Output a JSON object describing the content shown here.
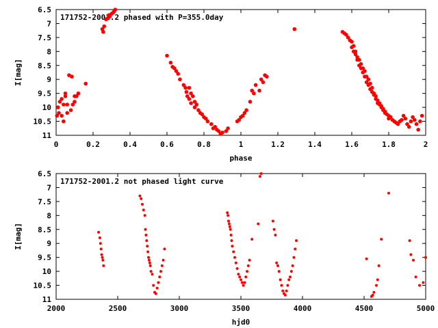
{
  "chart_data": [
    {
      "type": "scatter",
      "title": "171752-2001.2 phased with P=355.0day",
      "xlabel": "phase",
      "ylabel": "I[mag]",
      "xlim": [
        0,
        2
      ],
      "ylim": [
        11,
        6.5
      ],
      "y_inverted": true,
      "grid": false,
      "marker_color": "#ff0000",
      "xticks": [
        "0",
        "0.2",
        "0.4",
        "0.6",
        "0.8",
        "1",
        "1.2",
        "1.4",
        "1.6",
        "1.8",
        "2"
      ],
      "yticks": [
        "6.5",
        "7",
        "7.5",
        "8",
        "8.5",
        "9",
        "9.5",
        "10",
        "10.5",
        "11"
      ],
      "series": [
        {
          "x": [
            0.005,
            0.01,
            0.015,
            0.02,
            0.03,
            0.03,
            0.04,
            0.04,
            0.05,
            0.05,
            0.06,
            0.06,
            0.07,
            0.08,
            0.085,
            0.09,
            0.1,
            0.1,
            0.11,
            0.12,
            0.16,
            0.25,
            0.255,
            0.26,
            0.27,
            0.28,
            0.285,
            0.29,
            0.3,
            0.31,
            0.315,
            0.32,
            0.6,
            0.62,
            0.63,
            0.64,
            0.65,
            0.66,
            0.67,
            0.69,
            0.7,
            0.705,
            0.71,
            0.72,
            0.72,
            0.73,
            0.73,
            0.74,
            0.75,
            0.75,
            0.76,
            0.77,
            0.78,
            0.79,
            0.8,
            0.81,
            0.82,
            0.84,
            0.85,
            0.86,
            0.87,
            0.88,
            0.89,
            0.9,
            0.92,
            0.93,
            0.98,
            0.99,
            1.0,
            1.01,
            1.02,
            1.03,
            1.05,
            1.06,
            1.07,
            1.08,
            1.1,
            1.11,
            1.12,
            1.13,
            1.14,
            1.29,
            1.55,
            1.56,
            1.57,
            1.58,
            1.59,
            1.6,
            1.6,
            1.61,
            1.61,
            1.62,
            1.62,
            1.63,
            1.63,
            1.64,
            1.64,
            1.65,
            1.65,
            1.66,
            1.66,
            1.67,
            1.67,
            1.68,
            1.68,
            1.69,
            1.69,
            1.7,
            1.7,
            1.71,
            1.71,
            1.72,
            1.72,
            1.73,
            1.73,
            1.74,
            1.74,
            1.75,
            1.75,
            1.76,
            1.76,
            1.77,
            1.77,
            1.78,
            1.78,
            1.79,
            1.8,
            1.8,
            1.81,
            1.82,
            1.83,
            1.84,
            1.85,
            1.86,
            1.87,
            1.88,
            1.89,
            1.9,
            1.91,
            1.92,
            1.93,
            1.94,
            1.95,
            1.96,
            1.97,
            1.98
          ],
          "y": [
            10.3,
            10.0,
            10.2,
            9.8,
            10.3,
            9.7,
            9.9,
            10.5,
            9.6,
            9.5,
            10.2,
            9.9,
            8.85,
            10.1,
            8.9,
            9.9,
            9.6,
            9.8,
            9.6,
            9.5,
            9.15,
            7.2,
            7.3,
            7.1,
            6.85,
            6.8,
            6.7,
            6.75,
            6.65,
            6.6,
            6.55,
            6.5,
            8.15,
            8.4,
            8.55,
            8.6,
            8.7,
            8.8,
            9.0,
            9.2,
            9.3,
            9.45,
            9.6,
            9.7,
            9.3,
            9.5,
            9.85,
            9.6,
            9.8,
            10.0,
            9.9,
            10.1,
            10.2,
            10.25,
            10.35,
            10.4,
            10.5,
            10.6,
            10.75,
            10.7,
            10.8,
            10.85,
            10.95,
            10.9,
            10.85,
            10.75,
            10.5,
            10.45,
            10.35,
            10.3,
            10.2,
            10.1,
            9.8,
            9.4,
            9.5,
            9.2,
            9.4,
            9.0,
            9.1,
            8.85,
            8.9,
            7.2,
            7.3,
            7.35,
            7.4,
            7.5,
            7.6,
            7.65,
            7.85,
            7.8,
            8.0,
            8.1,
            8.0,
            8.2,
            8.3,
            8.3,
            8.5,
            8.45,
            8.6,
            8.6,
            8.75,
            8.7,
            8.9,
            8.9,
            9.1,
            9.0,
            9.2,
            9.15,
            9.35,
            9.3,
            9.45,
            9.5,
            9.55,
            9.7,
            9.6,
            9.85,
            9.75,
            9.9,
            9.85,
            10.0,
            9.95,
            10.1,
            10.05,
            10.2,
            10.15,
            10.25,
            10.3,
            10.4,
            10.35,
            10.45,
            10.5,
            10.55,
            10.6,
            10.5,
            10.45,
            10.3,
            10.4,
            10.6,
            10.7,
            10.5,
            10.35,
            10.45,
            10.6,
            10.8,
            10.5,
            10.3
          ]
        }
      ]
    },
    {
      "type": "scatter",
      "title": "171752-2001.2 not phased light curve",
      "xlabel": "hjd0",
      "ylabel": "I[mag]",
      "xlim": [
        2000,
        5000
      ],
      "ylim": [
        11,
        6.5
      ],
      "y_inverted": true,
      "grid": false,
      "marker_color": "#ff0000",
      "xticks": [
        "2000",
        "2500",
        "3000",
        "3500",
        "4000",
        "4500",
        "5000"
      ],
      "yticks": [
        "6.5",
        "7",
        "7.5",
        "8",
        "8.5",
        "9",
        "9.5",
        "10",
        "10.5",
        "11"
      ],
      "series": [
        {
          "x": [
            2345,
            2355,
            2360,
            2365,
            2370,
            2375,
            2380,
            2385,
            2680,
            2690,
            2700,
            2710,
            2720,
            2725,
            2730,
            2735,
            2740,
            2745,
            2750,
            2755,
            2760,
            2765,
            2770,
            2780,
            2790,
            2800,
            2810,
            2820,
            2830,
            2840,
            2850,
            2860,
            2870,
            2880,
            3390,
            3395,
            3400,
            3405,
            3410,
            3415,
            3420,
            3425,
            3430,
            3440,
            3450,
            3460,
            3470,
            3480,
            3490,
            3500,
            3510,
            3520,
            3530,
            3540,
            3550,
            3560,
            3570,
            3590,
            3640,
            3655,
            3665,
            3760,
            3770,
            3780,
            3790,
            3800,
            3810,
            3820,
            3830,
            3840,
            3850,
            3860,
            3870,
            3880,
            3890,
            3900,
            3910,
            3920,
            3930,
            3940,
            3950,
            4520,
            4560,
            4570,
            4580,
            4600,
            4610,
            4620,
            4640,
            4700,
            4870,
            4880,
            4900,
            4920,
            4950,
            4980,
            5000
          ],
          "y": [
            8.6,
            8.8,
            9.0,
            9.2,
            9.4,
            9.5,
            9.6,
            9.8,
            7.3,
            7.4,
            7.6,
            7.8,
            8.0,
            8.5,
            8.7,
            8.9,
            9.1,
            9.3,
            9.5,
            9.6,
            9.7,
            9.8,
            10.0,
            10.1,
            10.5,
            10.75,
            10.8,
            10.6,
            10.4,
            10.2,
            10.0,
            9.8,
            9.6,
            9.2,
            7.9,
            8.0,
            8.2,
            8.3,
            8.4,
            8.5,
            8.7,
            8.9,
            9.1,
            9.3,
            9.5,
            9.7,
            9.9,
            10.1,
            10.2,
            10.3,
            10.4,
            10.5,
            10.4,
            10.2,
            10.0,
            9.8,
            9.6,
            8.85,
            8.3,
            6.6,
            6.5,
            8.2,
            8.5,
            8.7,
            9.7,
            9.8,
            10.0,
            10.3,
            10.5,
            10.7,
            10.8,
            10.85,
            10.7,
            10.5,
            10.3,
            10.2,
            10.0,
            9.8,
            9.5,
            9.2,
            8.9,
            9.55,
            10.9,
            10.85,
            10.75,
            10.5,
            10.3,
            9.8,
            8.85,
            7.2,
            8.9,
            9.4,
            9.6,
            10.2,
            10.5,
            10.4,
            9.5
          ]
        }
      ]
    }
  ]
}
